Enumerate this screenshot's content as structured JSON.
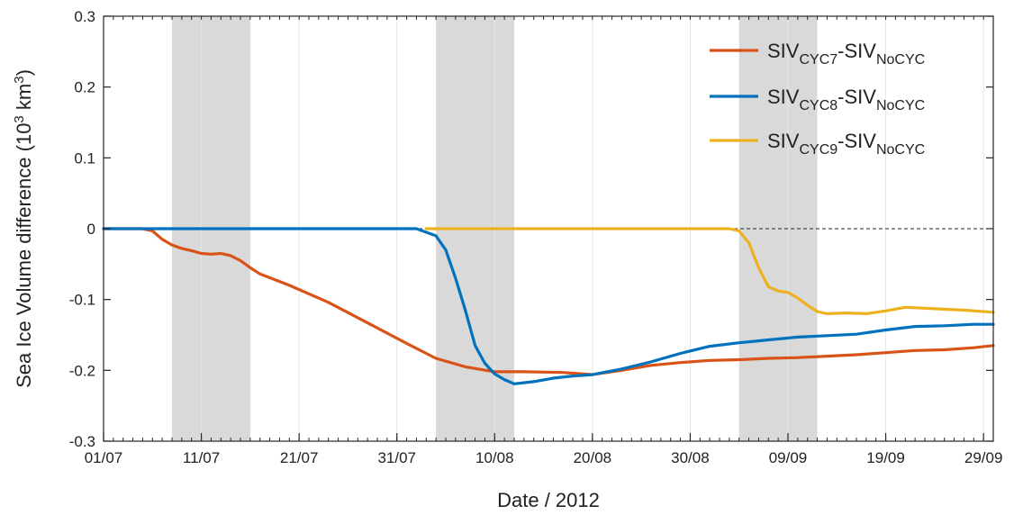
{
  "chart_data": {
    "type": "line",
    "xlabel": "Date / 2012",
    "ylabel": "Sea Ice Volume difference (10³ km³)",
    "ylabel_parts": {
      "main": "Sea Ice Volume difference (10",
      "exp1": "3",
      "mid": " km",
      "exp2": "3",
      "end": ")"
    },
    "xlim": [
      "2012-07-01",
      "2012-09-30"
    ],
    "ylim": [
      -0.3,
      0.3
    ],
    "x_tick_labels": [
      "01/07",
      "11/07",
      "21/07",
      "31/07",
      "10/08",
      "20/08",
      "30/08",
      "09/09",
      "19/09",
      "29/09"
    ],
    "x_tick_dates": [
      "2012-07-01",
      "2012-07-11",
      "2012-07-21",
      "2012-07-31",
      "2012-08-10",
      "2012-08-20",
      "2012-08-30",
      "2012-09-09",
      "2012-09-19",
      "2012-09-29"
    ],
    "y_tick_labels": [
      "0.3",
      "0.2",
      "0.1",
      "0",
      "-0.1",
      "-0.2",
      "-0.3"
    ],
    "y_tick_values": [
      0.3,
      0.2,
      0.1,
      0,
      -0.1,
      -0.2,
      -0.3
    ],
    "shaded_periods": [
      [
        "2012-07-08",
        "2012-07-16"
      ],
      [
        "2012-08-04",
        "2012-08-12"
      ],
      [
        "2012-09-04",
        "2012-09-12"
      ]
    ],
    "zero_line": true,
    "grid": "vertical",
    "legend_position": "top-right",
    "series": [
      {
        "label_parts": {
          "a": "SIV",
          "a_sub": "CYC7",
          "sep": "-SIV",
          "b_sub": "NoCYC"
        },
        "color": "#d95319",
        "x": [
          "2012-07-01",
          "2012-07-04",
          "2012-07-05",
          "2012-07-06",
          "2012-07-07",
          "2012-07-08",
          "2012-07-09",
          "2012-07-10",
          "2012-07-11",
          "2012-07-12",
          "2012-07-13",
          "2012-07-14",
          "2012-07-15",
          "2012-07-16",
          "2012-07-17",
          "2012-07-20",
          "2012-07-24",
          "2012-07-28",
          "2012-08-01",
          "2012-08-04",
          "2012-08-07",
          "2012-08-10",
          "2012-08-13",
          "2012-08-17",
          "2012-08-20",
          "2012-08-23",
          "2012-08-26",
          "2012-08-29",
          "2012-09-01",
          "2012-09-04",
          "2012-09-07",
          "2012-09-10",
          "2012-09-13",
          "2012-09-16",
          "2012-09-19",
          "2012-09-22",
          "2012-09-25",
          "2012-09-28",
          "2012-09-30"
        ],
        "values": [
          0,
          0,
          0,
          -0.003,
          -0.015,
          -0.023,
          -0.028,
          -0.031,
          -0.035,
          -0.036,
          -0.035,
          -0.038,
          -0.045,
          -0.055,
          -0.064,
          -0.08,
          -0.104,
          -0.133,
          -0.162,
          -0.183,
          -0.195,
          -0.202,
          -0.202,
          -0.203,
          -0.206,
          -0.2,
          -0.193,
          -0.189,
          -0.186,
          -0.185,
          -0.183,
          -0.182,
          -0.18,
          -0.178,
          -0.175,
          -0.172,
          -0.171,
          -0.168,
          -0.165
        ]
      },
      {
        "label_parts": {
          "a": "SIV",
          "a_sub": "CYC8",
          "sep": "-SIV",
          "b_sub": "NoCYC"
        },
        "color": "#0072bd",
        "x": [
          "2012-07-01",
          "2012-08-02",
          "2012-08-04",
          "2012-08-05",
          "2012-08-06",
          "2012-08-07",
          "2012-08-08",
          "2012-08-09",
          "2012-08-10",
          "2012-08-11",
          "2012-08-12",
          "2012-08-14",
          "2012-08-16",
          "2012-08-18",
          "2012-08-20",
          "2012-08-23",
          "2012-08-26",
          "2012-08-29",
          "2012-09-01",
          "2012-09-04",
          "2012-09-07",
          "2012-09-10",
          "2012-09-13",
          "2012-09-16",
          "2012-09-19",
          "2012-09-22",
          "2012-09-25",
          "2012-09-28",
          "2012-09-30"
        ],
        "values": [
          0,
          0,
          -0.01,
          -0.03,
          -0.07,
          -0.115,
          -0.165,
          -0.19,
          -0.205,
          -0.213,
          -0.219,
          -0.216,
          -0.211,
          -0.208,
          -0.206,
          -0.198,
          -0.188,
          -0.176,
          -0.166,
          -0.161,
          -0.157,
          -0.153,
          -0.151,
          -0.149,
          -0.143,
          -0.138,
          -0.137,
          -0.135,
          -0.135
        ]
      },
      {
        "label_parts": {
          "a": "SIV",
          "a_sub": "CYC9",
          "sep": "-SIV",
          "b_sub": "NoCYC"
        },
        "color": "#edb120",
        "x": [
          "2012-08-03",
          "2012-09-03",
          "2012-09-04",
          "2012-09-05",
          "2012-09-06",
          "2012-09-07",
          "2012-09-08",
          "2012-09-09",
          "2012-09-10",
          "2012-09-11",
          "2012-09-12",
          "2012-09-13",
          "2012-09-15",
          "2012-09-17",
          "2012-09-19",
          "2012-09-21",
          "2012-09-24",
          "2012-09-27",
          "2012-09-30"
        ],
        "values": [
          0,
          0,
          -0.003,
          -0.02,
          -0.055,
          -0.082,
          -0.088,
          -0.09,
          -0.098,
          -0.108,
          -0.117,
          -0.12,
          -0.119,
          -0.12,
          -0.116,
          -0.111,
          -0.113,
          -0.115,
          -0.118
        ]
      }
    ]
  },
  "style": {
    "shade_color": "#d9d9d9",
    "axis_color": "#262626",
    "grid_color": "#e6e6e6",
    "zero_line_color": "#262626"
  }
}
